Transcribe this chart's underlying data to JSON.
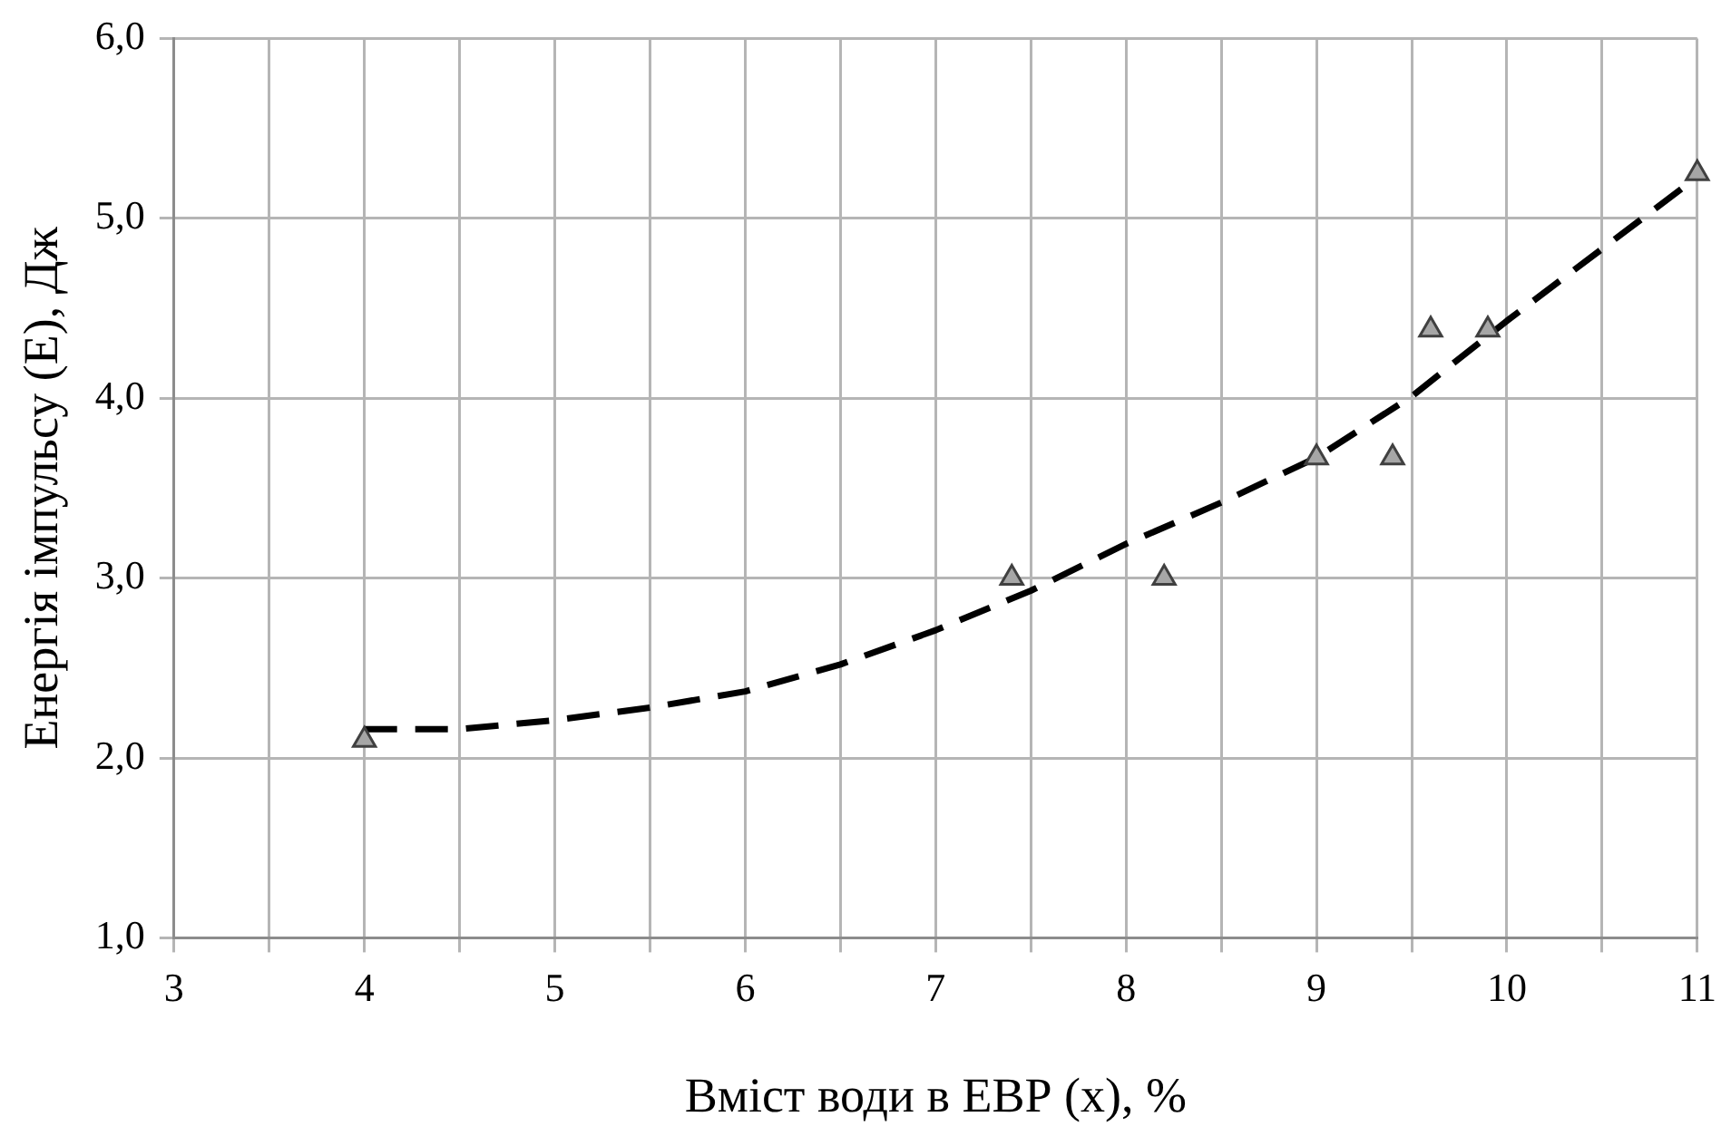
{
  "chart_data": {
    "type": "scatter",
    "xlabel": "Вміст води в ЕВР (x), %",
    "ylabel": "Енергія імпульсу (E), Дж",
    "xlim": [
      3,
      11
    ],
    "ylim": [
      1,
      6
    ],
    "xticks": [
      3,
      {
        "value": 3.5,
        "label": null
      },
      4,
      {
        "value": 4.5,
        "label": null
      },
      5,
      {
        "value": 5.5,
        "label": null
      },
      6,
      {
        "value": 6.5,
        "label": null
      },
      7,
      {
        "value": 7.5,
        "label": null
      },
      8,
      {
        "value": 8.5,
        "label": null
      },
      9,
      {
        "value": 9.5,
        "label": null
      },
      10,
      {
        "value": 10.5,
        "label": null
      },
      11
    ],
    "yticks": [
      {
        "value": 1,
        "label": "1,0"
      },
      {
        "value": 2,
        "label": "2,0"
      },
      {
        "value": 3,
        "label": "3,0"
      },
      {
        "value": 4,
        "label": "4,0"
      },
      {
        "value": 5,
        "label": "5,0"
      },
      {
        "value": 6,
        "label": "6,0"
      }
    ],
    "grid": true,
    "legend": false,
    "series": [
      {
        "type": "scatter",
        "marker": "triangle",
        "color": "#a6a6a6",
        "x": [
          4.0,
          7.4,
          8.2,
          9.0,
          9.4,
          9.6,
          9.9,
          11.0
        ],
        "values": [
          2.1,
          3.0,
          3.0,
          3.67,
          3.67,
          4.38,
          4.38,
          5.25
        ]
      },
      {
        "type": "line",
        "marker": "none",
        "line_style": "dashed",
        "color": "#000000",
        "x": [
          4,
          4.5,
          5,
          5.5,
          6,
          6.5,
          7,
          7.5,
          8,
          8.5,
          9,
          9.5,
          10,
          10.5,
          11
        ],
        "values": [
          2.16,
          2.16,
          2.21,
          2.28,
          2.37,
          2.52,
          2.71,
          2.93,
          3.19,
          3.42,
          3.67,
          4.01,
          4.43,
          4.83,
          5.23
        ]
      }
    ]
  }
}
